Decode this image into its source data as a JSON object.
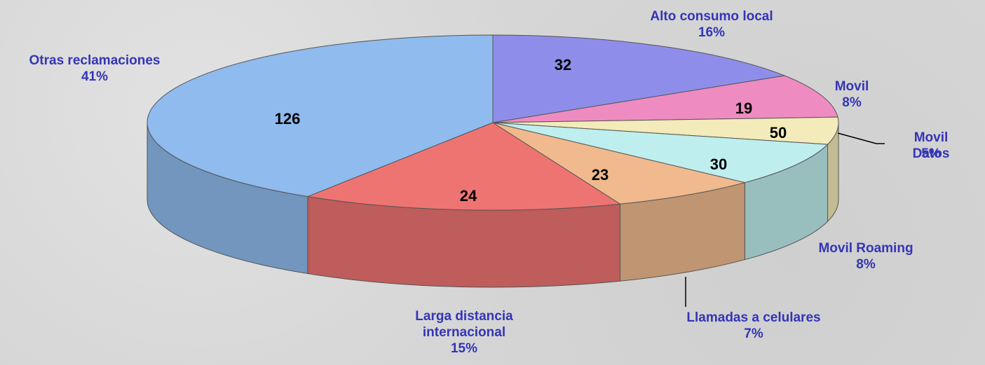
{
  "chart_data": {
    "type": "pie3d",
    "categories": [
      "Alto consumo local",
      "Movil",
      "Movil Datos",
      "Movil Roaming",
      "Llamadas a celulares",
      "Larga distancia\ninternacional",
      "Otras reclamaciones"
    ],
    "values": [
      16,
      8,
      5,
      8,
      7,
      15,
      41
    ],
    "value_labels": [
      "16%",
      "8%",
      "5%",
      "8%",
      "7%",
      "15%",
      "41%"
    ],
    "counts": [
      32,
      19,
      50,
      30,
      23,
      24,
      126
    ],
    "colors": [
      "#8e8eea",
      "#ee8cc2",
      "#f3ebb9",
      "#bfeeee",
      "#f0ba8e",
      "#ee7472",
      "#8fbbee"
    ]
  }
}
